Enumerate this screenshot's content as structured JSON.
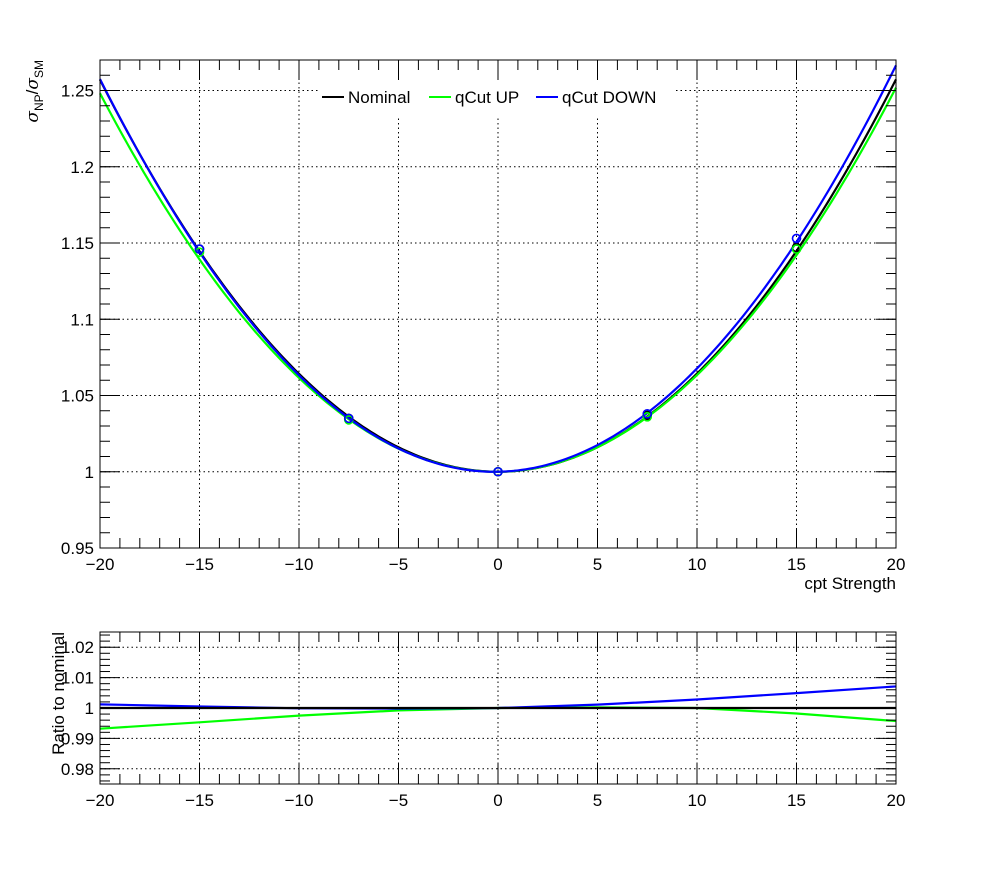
{
  "chart_data": [
    {
      "type": "line",
      "xlabel": "cpt Strength",
      "ylabel": "σ_NP/σ_SM",
      "ylabel_parts": {
        "sigma1": "σ",
        "sub1": "NP",
        "slash": "/",
        "sigma2": "σ",
        "sub2": "SM"
      },
      "xlim": [
        -20,
        20
      ],
      "ylim": [
        0.95,
        1.27
      ],
      "x_ticks": [
        -20,
        -15,
        -10,
        -5,
        0,
        5,
        10,
        15,
        20
      ],
      "x_tick_labels": [
        "−20",
        "−15",
        "−10",
        "−5",
        "0",
        "5",
        "10",
        "15",
        "20"
      ],
      "y_ticks": [
        0.95,
        1,
        1.05,
        1.1,
        1.15,
        1.2,
        1.25
      ],
      "y_tick_labels": [
        "0.95",
        "1",
        "1.05",
        "1.1",
        "1.15",
        "1.2",
        "1.25"
      ],
      "grid": true,
      "legend_position": "top-center",
      "series": [
        {
          "name": "Nominal",
          "color": "#000000",
          "coeffs": {
            "a": 0.000643,
            "b": 6.7e-06
          },
          "points": {
            "x": [
              -15,
              -7.5,
              0,
              7.5,
              15
            ],
            "y": [
              1.146,
              1.035,
              1.0,
              1.037,
              1.147
            ]
          }
        },
        {
          "name": "qCut UP",
          "color": "#00ff00",
          "coeffs": {
            "a": 0.000625,
            "b": 9.25e-05
          },
          "points": {
            "x": [
              -15,
              -7.5,
              0,
              7.5,
              15
            ],
            "y": [
              1.144,
              1.034,
              1.0,
              1.036,
              1.146
            ]
          }
        },
        {
          "name": "qCut DOWN",
          "color": "#0000ff",
          "coeffs": {
            "a": 0.000655,
            "b": 0.000225
          },
          "points": {
            "x": [
              -15,
              -7.5,
              0,
              7.5,
              15
            ],
            "y": [
              1.146,
              1.035,
              1.0,
              1.038,
              1.153
            ]
          }
        }
      ]
    },
    {
      "type": "line",
      "xlabel": "",
      "ylabel": "Ratio to nominal",
      "xlim": [
        -20,
        20
      ],
      "ylim": [
        0.975,
        1.025
      ],
      "x_ticks": [
        -20,
        -15,
        -10,
        -5,
        0,
        5,
        10,
        15,
        20
      ],
      "x_tick_labels": [
        "−20",
        "−15",
        "−10",
        "−5",
        "0",
        "5",
        "10",
        "15",
        "20"
      ],
      "y_ticks": [
        0.98,
        0.99,
        1,
        1.01,
        1.02
      ],
      "y_tick_labels": [
        "0.98",
        "0.99",
        "1",
        "1.01",
        "1.02"
      ],
      "grid": true,
      "series": [
        {
          "name": "Nominal",
          "color": "#000000",
          "x": [
            -20,
            20
          ],
          "y": [
            1,
            1
          ]
        },
        {
          "name": "qCut UP",
          "color": "#00ff00",
          "x": [
            -20,
            -15,
            -10,
            -5,
            0,
            5,
            10,
            15,
            20
          ],
          "y": [
            0.9932,
            0.9953,
            0.9975,
            0.9992,
            1.0,
            1.0002,
            1.0,
            0.9982,
            0.9957
          ]
        },
        {
          "name": "qCut DOWN",
          "color": "#0000ff",
          "x": [
            -20,
            -15,
            -10,
            -5,
            0,
            5,
            10,
            15,
            20
          ],
          "y": [
            1.0012,
            1.0005,
            0.9999,
            0.9998,
            1.0,
            1.0011,
            1.0028,
            1.0049,
            1.0071
          ]
        }
      ]
    }
  ]
}
